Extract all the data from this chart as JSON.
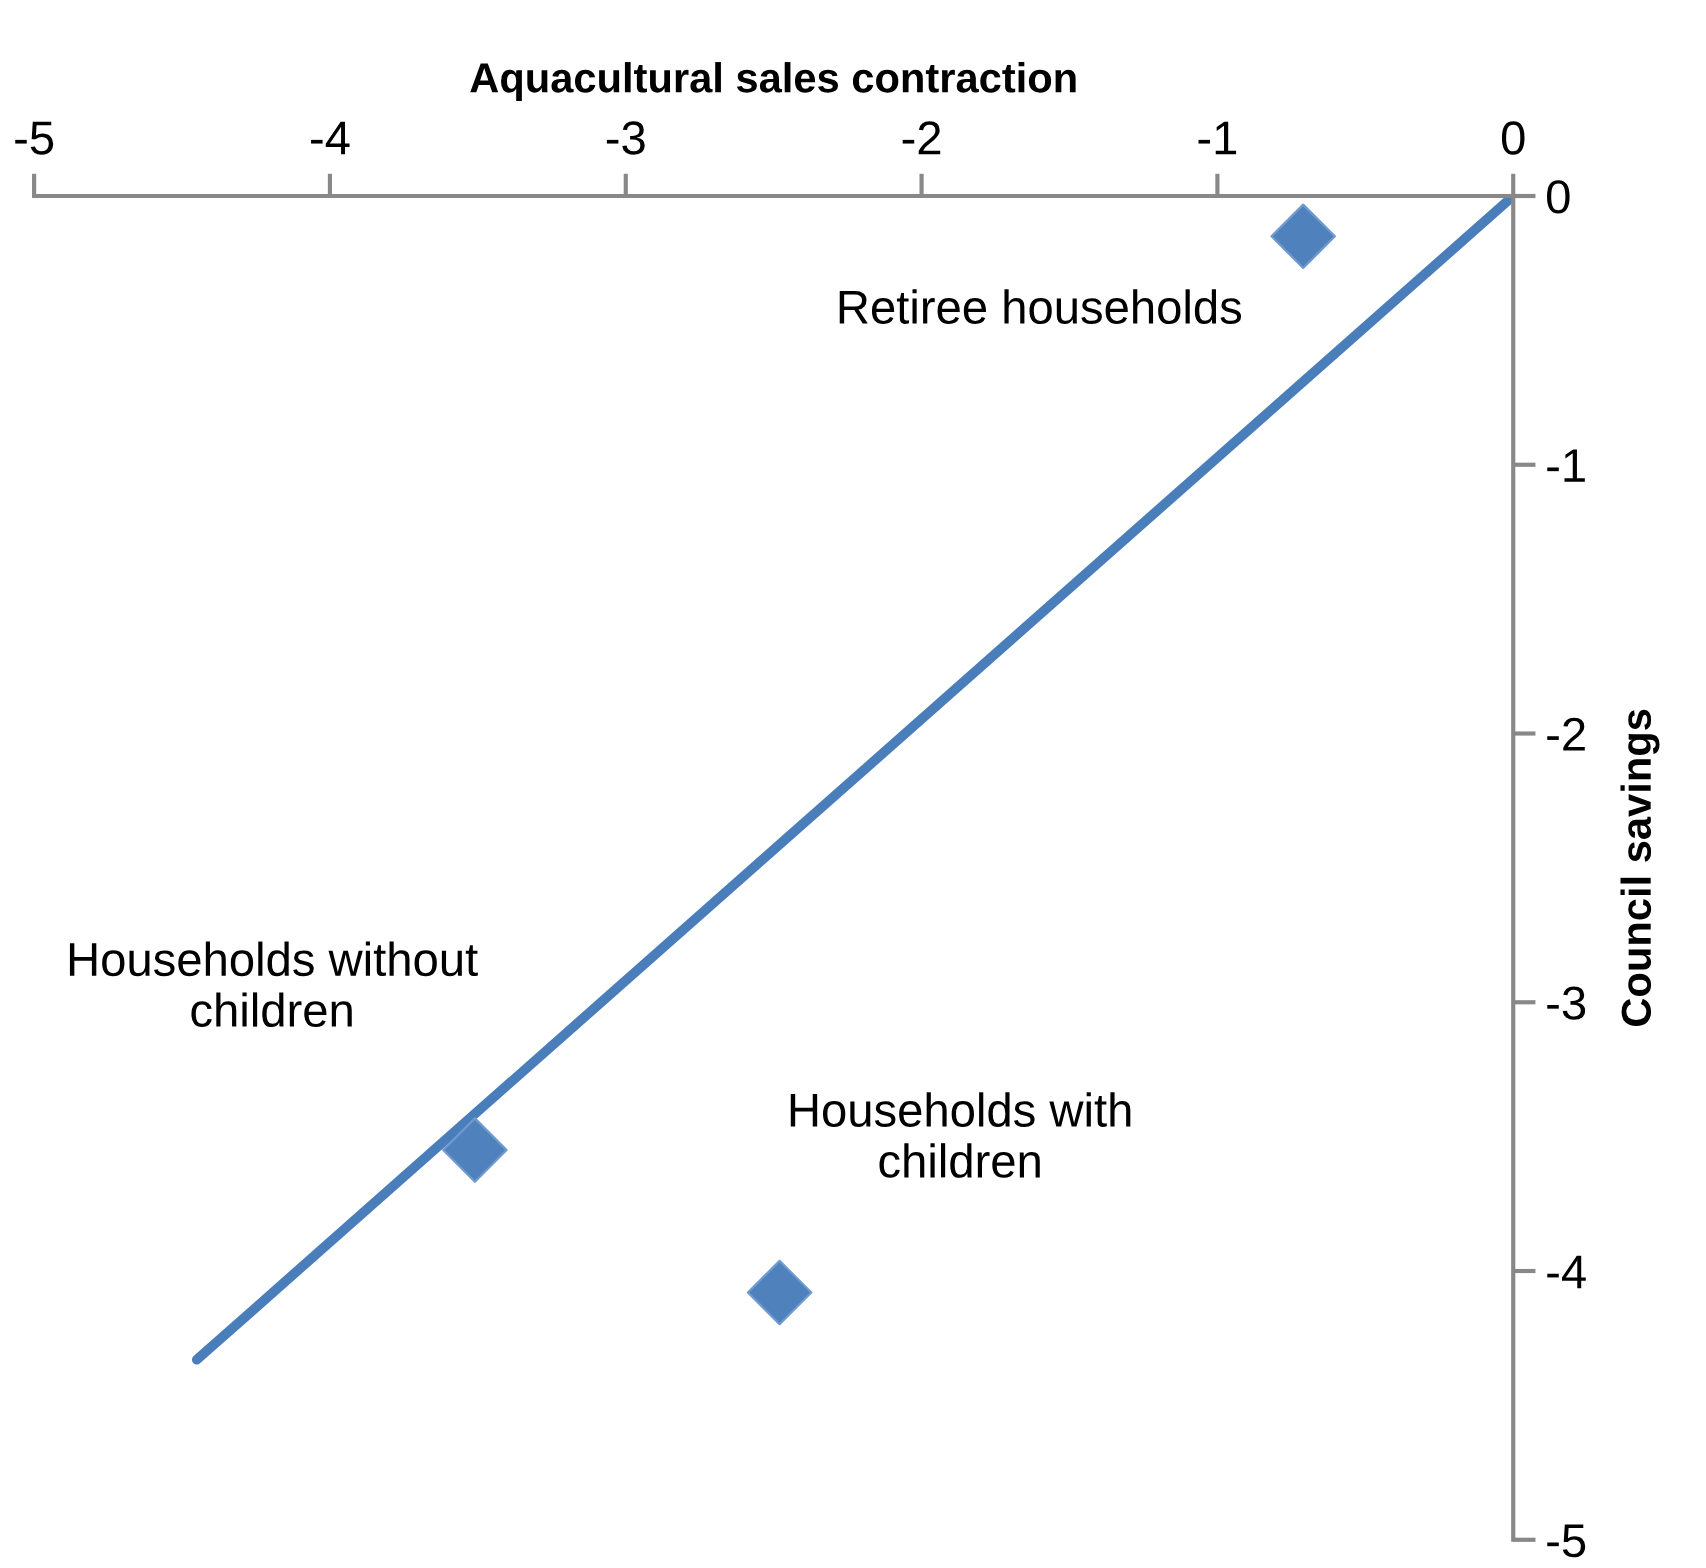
{
  "chart_data": {
    "type": "scatter",
    "xlabel": "Aquacultural sales contraction",
    "ylabel": "Council savings",
    "xlim": [
      -5,
      0
    ],
    "ylim": [
      -5,
      0
    ],
    "xticks": [
      -5,
      -4,
      -3,
      -2,
      -1,
      0
    ],
    "yticks": [
      -5,
      -4,
      -3,
      -2,
      -1,
      0
    ],
    "grid": false,
    "marker": "diamond",
    "series": [
      {
        "color": "#4f81bd",
        "x": [
          -0.71,
          -3.51,
          -2.48
        ],
        "values": [
          -0.15,
          -3.55,
          -4.08
        ]
      },
      {
        "type": "line",
        "color": "#4a7ebb",
        "x": [
          -4.45,
          0
        ],
        "values": [
          -4.33,
          0
        ],
        "marker": "none"
      }
    ],
    "annotations": [
      "Retiree households",
      "Households without\nchildren",
      "Households with\nchildren"
    ]
  }
}
